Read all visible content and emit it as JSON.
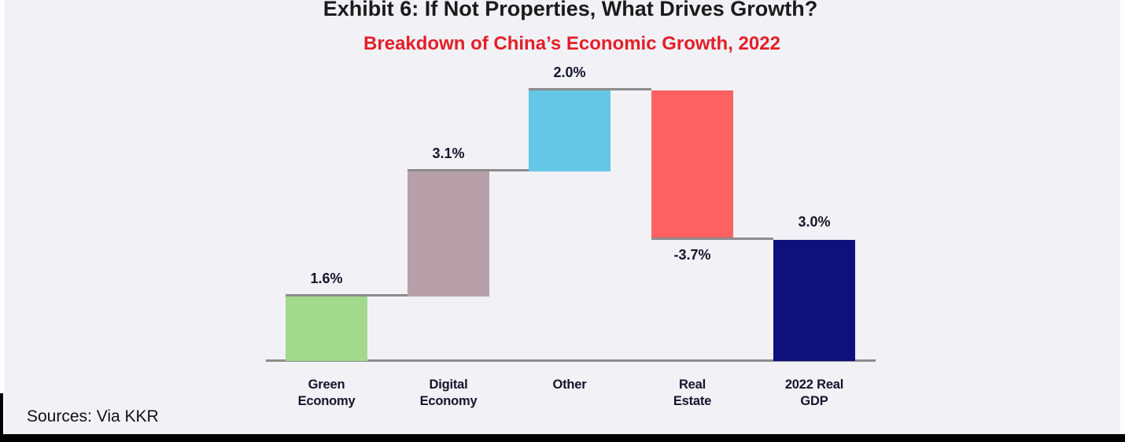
{
  "page": {
    "title": "Exhibit 6: If Not Properties, What Drives Growth?",
    "subtitle": "Breakdown of China’s Economic Growth, 2022",
    "source_note": "Sources: Via KKR",
    "colors": {
      "background": "#f1f1f6",
      "title_text": "#1b1b1b",
      "subtitle_red": "#e41e28",
      "label_text": "#14142b",
      "connector_gray": "#8c8c8c",
      "bottom_border": "#000000"
    }
  },
  "chart_data": {
    "type": "bar",
    "subtype": "waterfall",
    "title": "Exhibit 6: If Not Properties, What Drives Growth?",
    "subtitle": "Breakdown of China’s Economic Growth, 2022",
    "categories": [
      "Green\nEconomy",
      "Digital\nEconomy",
      "Other",
      "Real\nEstate",
      "2022 Real\nGDP"
    ],
    "values": [
      1.6,
      3.1,
      2.0,
      -3.7,
      3.0
    ],
    "value_labels": [
      "1.6%",
      "3.1%",
      "2.0%",
      "-3.7%",
      "3.0%"
    ],
    "kinds": [
      "delta",
      "delta",
      "delta",
      "delta",
      "total"
    ],
    "cumulative": [
      1.6,
      4.7,
      6.7,
      3.0,
      3.0
    ],
    "bar_colors": [
      "#a3d98c",
      "#b7a0a8",
      "#65c7e6",
      "#fd6161",
      "#10107c"
    ],
    "unit": "%",
    "ylim": [
      0,
      7
    ],
    "grid": false,
    "legend": false,
    "xlabel": "",
    "ylabel": ""
  }
}
